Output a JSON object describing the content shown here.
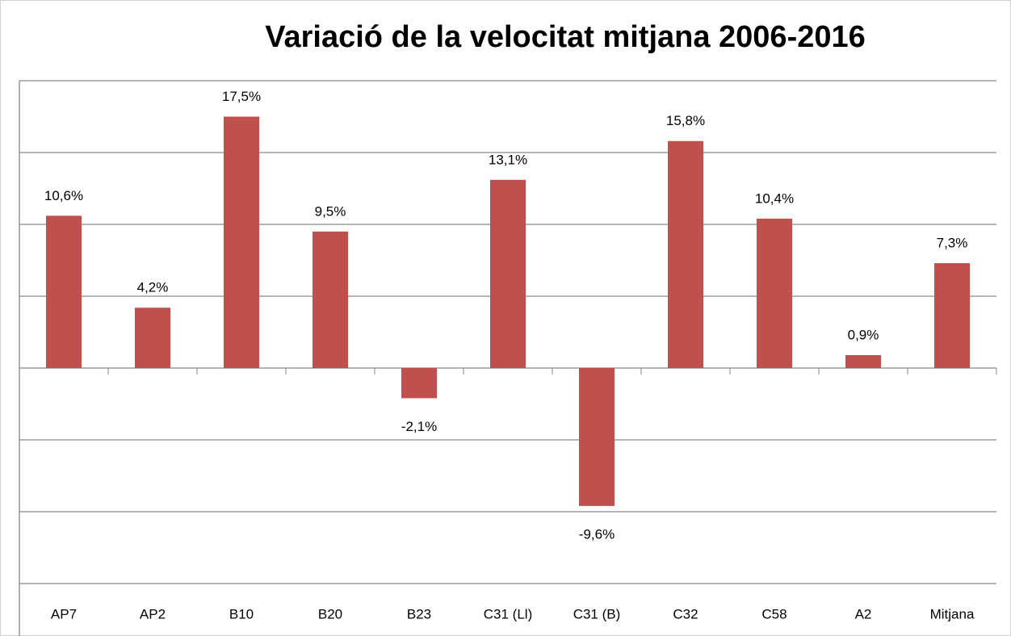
{
  "chart_data": {
    "type": "bar",
    "title": "Variació de la velocitat mitjana 2006-2016",
    "categories": [
      "AP7",
      "AP2",
      "B10",
      "B20",
      "B23",
      "C31 (Ll)",
      "C31 (B)",
      "C32",
      "C58",
      "A2",
      "Mitjana"
    ],
    "values": [
      10.6,
      4.2,
      17.5,
      9.5,
      -2.1,
      13.1,
      -9.6,
      15.8,
      10.4,
      0.9,
      7.3
    ],
    "value_labels": [
      "10,6%",
      "4,2%",
      "17,5%",
      "9,5%",
      "-2,1%",
      "13,1%",
      "-9,6%",
      "15,8%",
      "10,4%",
      "0,9%",
      "7,3%"
    ],
    "color": "#c0504d",
    "ylim": [
      -15,
      20
    ],
    "yticks": [
      -15,
      -10,
      -5,
      0,
      5,
      10,
      15,
      20
    ],
    "grid": true
  }
}
